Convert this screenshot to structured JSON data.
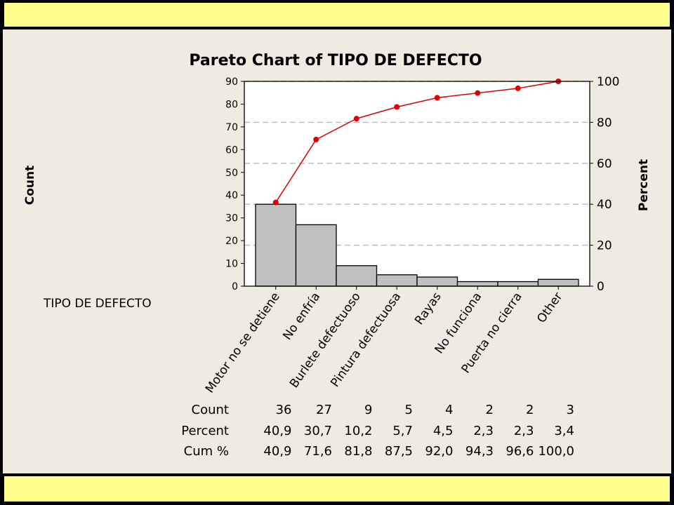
{
  "chart_data": {
    "type": "bar",
    "title": "Pareto Chart of TIPO DE DEFECTO",
    "xlabel": "TIPO DE DEFECTO",
    "ylabel": "Count",
    "y2label": "Percent",
    "categories": [
      "Motor no se detiene",
      "No enfría",
      "Burlete defectuoso",
      "Pintura defectuosa",
      "Rayas",
      "No funciona",
      "Puerta no cierra",
      "Other"
    ],
    "series": [
      {
        "name": "Count",
        "values": [
          36,
          27,
          9,
          5,
          4,
          2,
          2,
          3
        ]
      },
      {
        "name": "Cum %",
        "values": [
          40.9,
          71.6,
          81.8,
          87.5,
          92.0,
          94.3,
          96.6,
          100.0
        ]
      }
    ],
    "ylim": [
      0,
      90
    ],
    "yticks": [
      "0",
      "10",
      "20",
      "30",
      "40",
      "50",
      "60",
      "70",
      "80",
      "90"
    ],
    "y2lim": [
      0,
      100
    ],
    "y2ticks": [
      "0",
      "20",
      "40",
      "60",
      "80",
      "100"
    ],
    "colors": {
      "bars": "#c0c0c0",
      "line": "#e00000",
      "grid": "#b8b8b8",
      "panel": "#efebe0",
      "band": "#ffff8c"
    },
    "table": {
      "rows": [
        {
          "label": "Count",
          "values": [
            "36",
            "27",
            "9",
            "5",
            "4",
            "2",
            "2",
            "3"
          ]
        },
        {
          "label": "Percent",
          "values": [
            "40,9",
            "30,7",
            "10,2",
            "5,7",
            "4,5",
            "2,3",
            "2,3",
            "3,4"
          ]
        },
        {
          "label": "Cum %",
          "values": [
            "40,9",
            "71,6",
            "81,8",
            "87,5",
            "92,0",
            "94,3",
            "96,6",
            "100,0"
          ]
        }
      ]
    }
  }
}
